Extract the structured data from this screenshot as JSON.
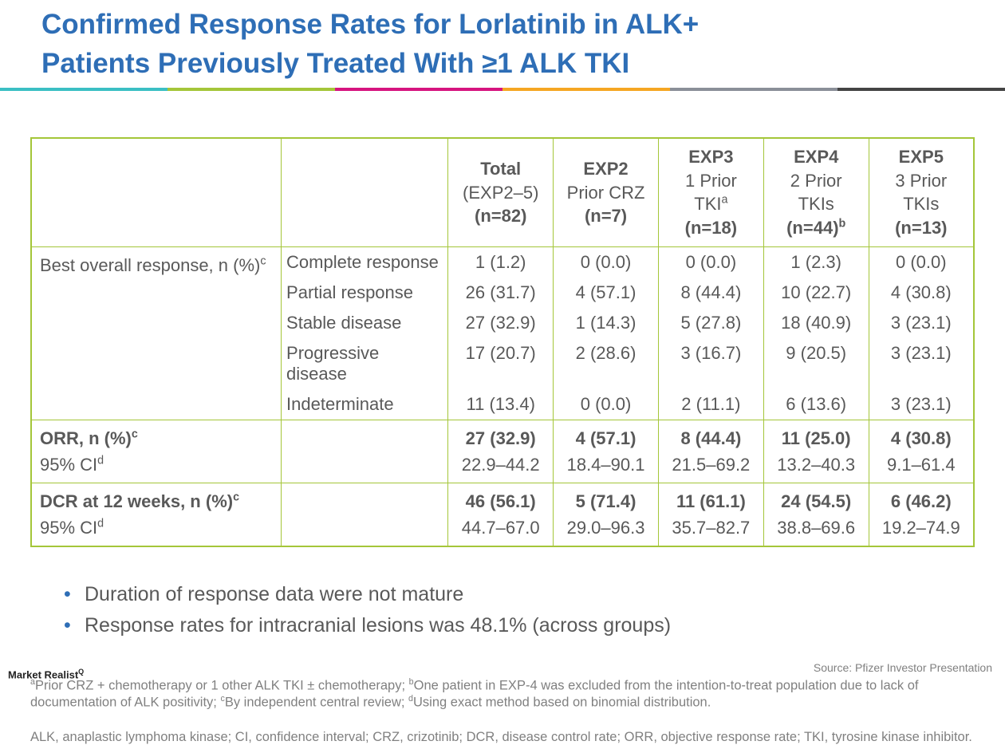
{
  "title_line1": "Confirmed Response Rates for Lorlatinib in ALK+",
  "title_line2": "Patients Previously Treated With ≥1 ALK TKI",
  "stripe_colors": [
    "#3bbfc4",
    "#a4c639",
    "#d6147f",
    "#f5a623",
    "#8a8f98",
    "#444444"
  ],
  "columns": [
    {
      "title": "Total",
      "sub1": "(EXP2–5)",
      "sub2": "(n=82)"
    },
    {
      "title": "EXP2",
      "sub1": "Prior CRZ",
      "sub2": "(n=7)"
    },
    {
      "title": "EXP3",
      "sub1_html": "1 Prior TKI<sup>a</sup>",
      "sub2": "(n=18)"
    },
    {
      "title": "EXP4",
      "sub1": "2 Prior TKIs",
      "sub2_html": "(n=44)<sup>b</sup>"
    },
    {
      "title": "EXP5",
      "sub1": "3 Prior TKIs",
      "sub2": "(n=13)"
    }
  ],
  "group1_label_html": "Best overall response, n (%)<sup>c</sup>",
  "group1": [
    {
      "sub": "Complete response",
      "v": [
        "1 (1.2)",
        "0 (0.0)",
        "0 (0.0)",
        "1 (2.3)",
        "0 (0.0)"
      ]
    },
    {
      "sub": "Partial response",
      "v": [
        "26 (31.7)",
        "4 (57.1)",
        "8 (44.4)",
        "10 (22.7)",
        "4 (30.8)"
      ]
    },
    {
      "sub": "Stable disease",
      "v": [
        "27 (32.9)",
        "1 (14.3)",
        "5 (27.8)",
        "18 (40.9)",
        "3 (23.1)"
      ]
    },
    {
      "sub": "Progressive disease",
      "v": [
        "17 (20.7)",
        "2 (28.6)",
        "3 (16.7)",
        "9 (20.5)",
        "3 (23.1)"
      ]
    },
    {
      "sub": "Indeterminate",
      "v": [
        "11 (13.4)",
        "0 (0.0)",
        "2 (11.1)",
        "6 (13.6)",
        "3 (23.1)"
      ]
    }
  ],
  "orr_label_html": "<span class=\"cell-strong\">ORR, n (%)<sup>c</sup></span><br>95% CI<sup>d</sup>",
  "orr": {
    "top": [
      "27 (32.9)",
      "4 (57.1)",
      "8 (44.4)",
      "11 (25.0)",
      "4 (30.8)"
    ],
    "ci": [
      "22.9–44.2",
      "18.4–90.1",
      "21.5–69.2",
      "13.2–40.3",
      "9.1–61.4"
    ]
  },
  "dcr_label_html": "<span class=\"cell-strong\">DCR at 12 weeks, n (%)<sup>c</sup></span><br>95% CI<sup>d</sup>",
  "dcr": {
    "top": [
      "46 (56.1)",
      "5 (71.4)",
      "11 (61.1)",
      "24 (54.5)",
      "6 (46.2)"
    ],
    "ci": [
      "44.7–67.0",
      "29.0–96.3",
      "35.7–82.7",
      "38.8–69.6",
      "19.2–74.9"
    ]
  },
  "bullets": [
    "Duration of response data were not mature",
    "Response rates for intracranial lesions was 48.1% (across groups)"
  ],
  "footnote1_html": "<sup>a</sup>Prior CRZ + chemotherapy or 1 other ALK TKI ± chemotherapy; <sup>b</sup>One patient in EXP-4 was excluded from the intention-to-treat population due to lack of documentation of ALK positivity; <sup>c</sup>By independent central review; <sup>d</sup>Using exact method based on binomial distribution.",
  "footnote2": "ALK, anaplastic lymphoma kinase; CI, confidence interval; CRZ, crizotinib; DCR, disease control rate; ORR, objective response rate; TKI, tyrosine kinase inhibitor.",
  "source": "Source: Pfizer Investor Presentation",
  "watermark_html": "Market Realist<sup>Q</sup>"
}
